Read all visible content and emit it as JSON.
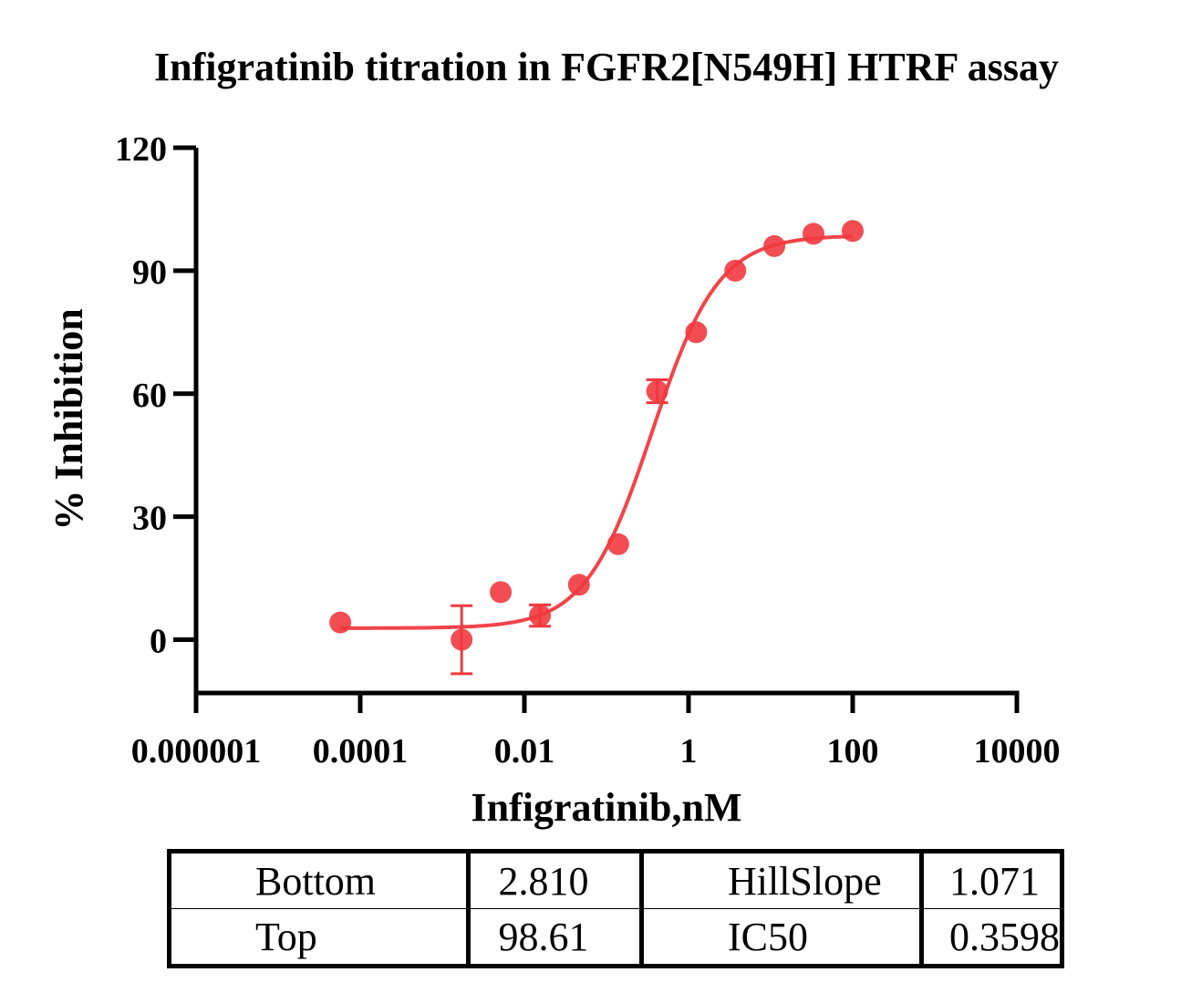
{
  "chart_data": {
    "type": "scatter",
    "title": "Infigratinib titration in FGFR2[N549H] HTRF assay",
    "xlabel": "Infigratinib,nM",
    "ylabel": "% Inhibition",
    "x_scale": "log10",
    "xlim": [
      1e-06,
      10000
    ],
    "ylim": [
      -13,
      120
    ],
    "x_ticks": [
      1e-06,
      0.0001,
      0.01,
      1,
      100,
      10000
    ],
    "x_tick_labels": [
      "0.000001",
      "0.0001",
      "0.01",
      "1",
      "100",
      "10000"
    ],
    "y_ticks": [
      0,
      30,
      60,
      90,
      120
    ],
    "y_tick_labels": [
      "0",
      "30",
      "60",
      "90",
      "120"
    ],
    "color": "#f03a3f",
    "series": [
      {
        "points": [
          {
            "x": 5.72e-05,
            "y": 4.2,
            "err": 0
          },
          {
            "x": 0.00172,
            "y": 0.0,
            "err": 8.3
          },
          {
            "x": 0.00515,
            "y": 11.6,
            "err": 0
          },
          {
            "x": 0.0155,
            "y": 5.9,
            "err": 2.6
          },
          {
            "x": 0.0462,
            "y": 13.4,
            "err": 0
          },
          {
            "x": 0.139,
            "y": 23.3,
            "err": 0
          },
          {
            "x": 0.415,
            "y": 60.6,
            "err": 2.8
          },
          {
            "x": 1.24,
            "y": 75.0,
            "err": 0
          },
          {
            "x": 3.71,
            "y": 90.0,
            "err": 0
          },
          {
            "x": 11.1,
            "y": 96.0,
            "err": 0
          },
          {
            "x": 33.3,
            "y": 99.0,
            "err": 0
          },
          {
            "x": 100,
            "y": 99.7,
            "err": 0
          }
        ]
      }
    ],
    "fit": {
      "bottom": 2.81,
      "top": 98.61,
      "hill_slope": 1.071,
      "ic50": 0.3598
    }
  },
  "params_table": [
    [
      "Bottom",
      "2.810",
      "HillSlope",
      "1.071"
    ],
    [
      "Top",
      "98.61",
      "IC50",
      "0.3598"
    ]
  ]
}
